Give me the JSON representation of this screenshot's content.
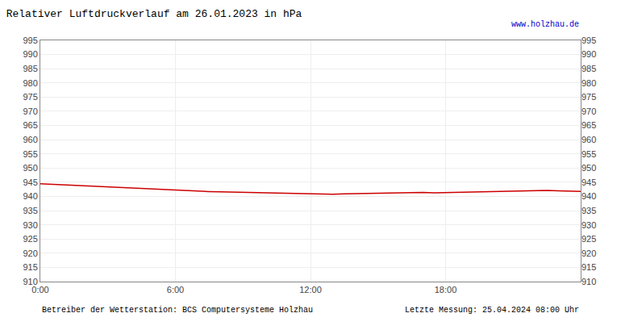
{
  "chart_data": {
    "type": "line",
    "title": "Relativer Luftdruckverlauf am 26.01.2023 in hPa",
    "annotations": [
      "www.holzhau.de",
      "Betreiber der Wetterstation: BCS Computersysteme Holzhau",
      "Letzte Messung: 25.04.2024 08:00 Uhr"
    ],
    "x": [
      0,
      30,
      60,
      90,
      120,
      150,
      180,
      210,
      240,
      270,
      300,
      330,
      360,
      390,
      420,
      450,
      480,
      510,
      540,
      570,
      600,
      630,
      660,
      690,
      720,
      750,
      780,
      810,
      840,
      870,
      900,
      930,
      960,
      990,
      1020,
      1050,
      1080,
      1110,
      1140,
      1170,
      1200,
      1230,
      1260,
      1290,
      1320,
      1350,
      1380,
      1410,
      1440
    ],
    "values": [
      944.5,
      944.3,
      944.1,
      943.9,
      943.7,
      943.5,
      943.3,
      943.1,
      943.0,
      942.8,
      942.6,
      942.4,
      942.2,
      942.0,
      941.8,
      941.7,
      941.6,
      941.5,
      941.4,
      941.3,
      941.2,
      941.1,
      941.0,
      940.9,
      940.8,
      940.7,
      940.8,
      940.9,
      941.0,
      941.1,
      941.2,
      941.3,
      941.4,
      941.5,
      941.4,
      941.3,
      941.4,
      941.5,
      941.6,
      941.7,
      941.8,
      941.9,
      942.0,
      942.1,
      942.2,
      942.1,
      942.0,
      941.9,
      941.8
    ],
    "color": "#cc0000",
    "xlim": [
      0,
      1440
    ],
    "xticks": [
      {
        "value": 0,
        "label": "0:00"
      },
      {
        "value": 360,
        "label": "6:00"
      },
      {
        "value": 720,
        "label": "12:00"
      },
      {
        "value": 1080,
        "label": "18:00"
      }
    ],
    "ylim": [
      910,
      995
    ],
    "yticks": [
      910,
      915,
      920,
      925,
      930,
      935,
      940,
      945,
      950,
      955,
      960,
      965,
      970,
      975,
      980,
      985,
      990,
      995
    ],
    "y2lim": [
      910,
      995
    ],
    "y2ticks": [
      910,
      915,
      920,
      925,
      930,
      935,
      940,
      945,
      950,
      955,
      960,
      965,
      970,
      975,
      980,
      985,
      990,
      995
    ],
    "grid": true
  }
}
